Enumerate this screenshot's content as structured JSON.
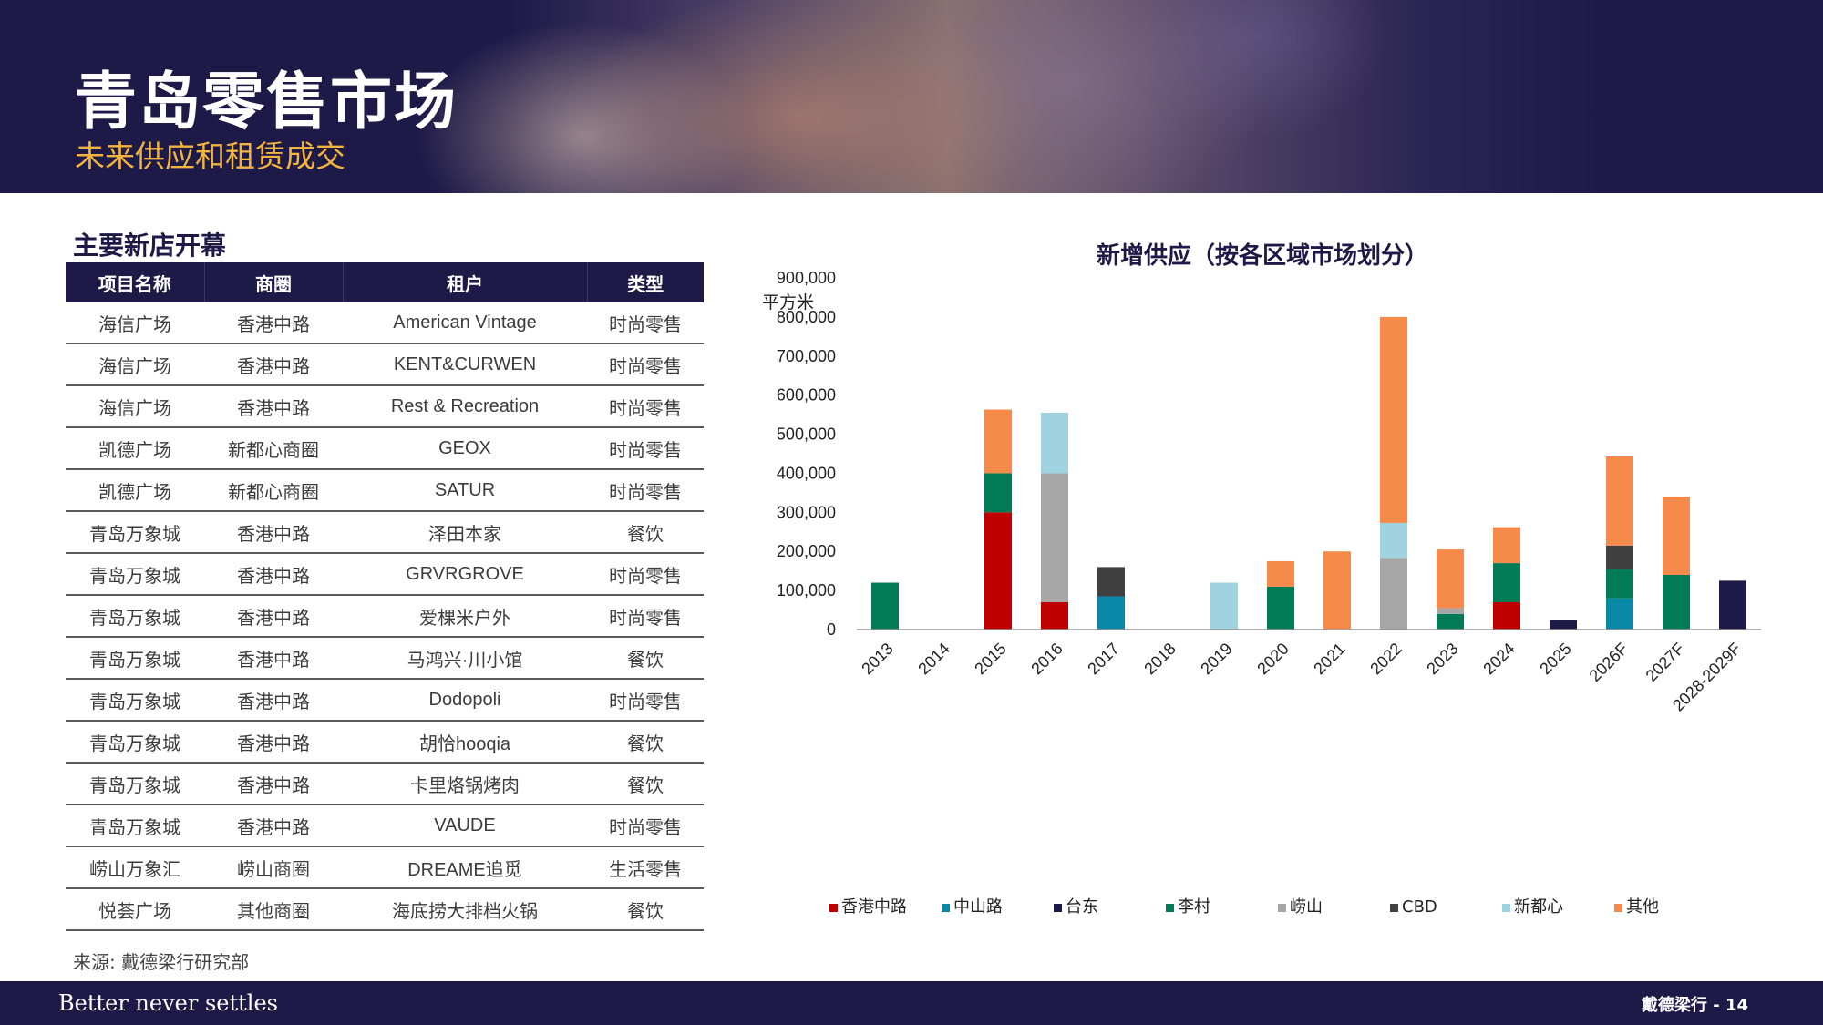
{
  "header": {
    "title": "青岛零售市场",
    "subtitle": "未来供应和租赁成交"
  },
  "table_section": {
    "title": "主要新店开幕",
    "columns": [
      "项目名称",
      "商圈",
      "租户",
      "类型"
    ],
    "rows": [
      [
        "海信广场",
        "香港中路",
        "American Vintage",
        "时尚零售"
      ],
      [
        "海信广场",
        "香港中路",
        "KENT&CURWEN",
        "时尚零售"
      ],
      [
        "海信广场",
        "香港中路",
        "Rest & Recreation",
        "时尚零售"
      ],
      [
        "凯德广场",
        "新都心商圈",
        "GEOX",
        "时尚零售"
      ],
      [
        "凯德广场",
        "新都心商圈",
        "SATUR",
        "时尚零售"
      ],
      [
        "青岛万象城",
        "香港中路",
        "泽田本家",
        "餐饮"
      ],
      [
        "青岛万象城",
        "香港中路",
        "GRVRGROVE",
        "时尚零售"
      ],
      [
        "青岛万象城",
        "香港中路",
        "爱棵米户外",
        "时尚零售"
      ],
      [
        "青岛万象城",
        "香港中路",
        "马鸿兴·川小馆",
        "餐饮"
      ],
      [
        "青岛万象城",
        "香港中路",
        "Dodopoli",
        "时尚零售"
      ],
      [
        "青岛万象城",
        "香港中路",
        "胡恰hooqia",
        "餐饮"
      ],
      [
        "青岛万象城",
        "香港中路",
        "卡里烙锅烤肉",
        "餐饮"
      ],
      [
        "青岛万象城",
        "香港中路",
        "VAUDE",
        "时尚零售"
      ],
      [
        "崂山万象汇",
        "崂山商圈",
        "DREAME追觅",
        "生活零售"
      ],
      [
        "悦荟广场",
        "其他商圈",
        "海底捞大排档火锅",
        "餐饮"
      ]
    ],
    "source": "来源: 戴德梁行研究部"
  },
  "chart_data": {
    "type": "bar",
    "stacked": true,
    "title": "新增供应（按各区域市场划分）",
    "ylabel": "平方米",
    "xlabel": "",
    "ylim": [
      0,
      900000
    ],
    "yticks": [
      "0",
      "100,000",
      "200,000",
      "300,000",
      "400,000",
      "500,000",
      "600,000",
      "700,000",
      "800,000",
      "900,000"
    ],
    "ytick_values": [
      0,
      100000,
      200000,
      300000,
      400000,
      500000,
      600000,
      700000,
      800000,
      900000
    ],
    "grid": false,
    "legend_position": "bottom",
    "categories": [
      "2013",
      "2014",
      "2015",
      "2016",
      "2017",
      "2018",
      "2019",
      "2020",
      "2021",
      "2022",
      "2023",
      "2024",
      "2025",
      "2026F",
      "2027F",
      "2028-2029F"
    ],
    "series": [
      {
        "name": "香港中路",
        "color": "#c00000",
        "values": [
          0,
          0,
          300000,
          70000,
          0,
          0,
          0,
          0,
          0,
          0,
          0,
          70000,
          0,
          0,
          0,
          0
        ]
      },
      {
        "name": "中山路",
        "color": "#0a86a6",
        "values": [
          0,
          0,
          0,
          0,
          85000,
          0,
          0,
          0,
          0,
          0,
          0,
          0,
          0,
          80000,
          0,
          0
        ]
      },
      {
        "name": "台东",
        "color": "#1e1a48",
        "values": [
          0,
          0,
          0,
          0,
          0,
          0,
          0,
          0,
          0,
          0,
          0,
          0,
          25000,
          0,
          0,
          125000
        ]
      },
      {
        "name": "李村",
        "color": "#007b55",
        "values": [
          120000,
          0,
          100000,
          0,
          0,
          0,
          0,
          110000,
          0,
          0,
          40000,
          100000,
          0,
          75000,
          140000,
          0
        ]
      },
      {
        "name": "崂山",
        "color": "#a6a6a6",
        "values": [
          0,
          0,
          0,
          330000,
          0,
          0,
          0,
          0,
          0,
          183000,
          15000,
          0,
          0,
          0,
          0,
          0
        ]
      },
      {
        "name": "CBD",
        "color": "#404040",
        "values": [
          0,
          0,
          0,
          0,
          75000,
          0,
          0,
          0,
          0,
          0,
          0,
          0,
          0,
          60000,
          0,
          0
        ]
      },
      {
        "name": "新都心",
        "color": "#9fd3e0",
        "values": [
          0,
          0,
          0,
          155000,
          0,
          0,
          120000,
          0,
          0,
          90000,
          0,
          0,
          0,
          0,
          0,
          0
        ]
      },
      {
        "name": "其他",
        "color": "#f58a4b",
        "values": [
          0,
          0,
          163000,
          0,
          0,
          0,
          0,
          65000,
          200000,
          527000,
          150000,
          92000,
          0,
          228000,
          200000,
          0
        ]
      }
    ]
  },
  "footer": {
    "tagline": "Better never settles",
    "page_label": "戴德梁行 - 14"
  }
}
